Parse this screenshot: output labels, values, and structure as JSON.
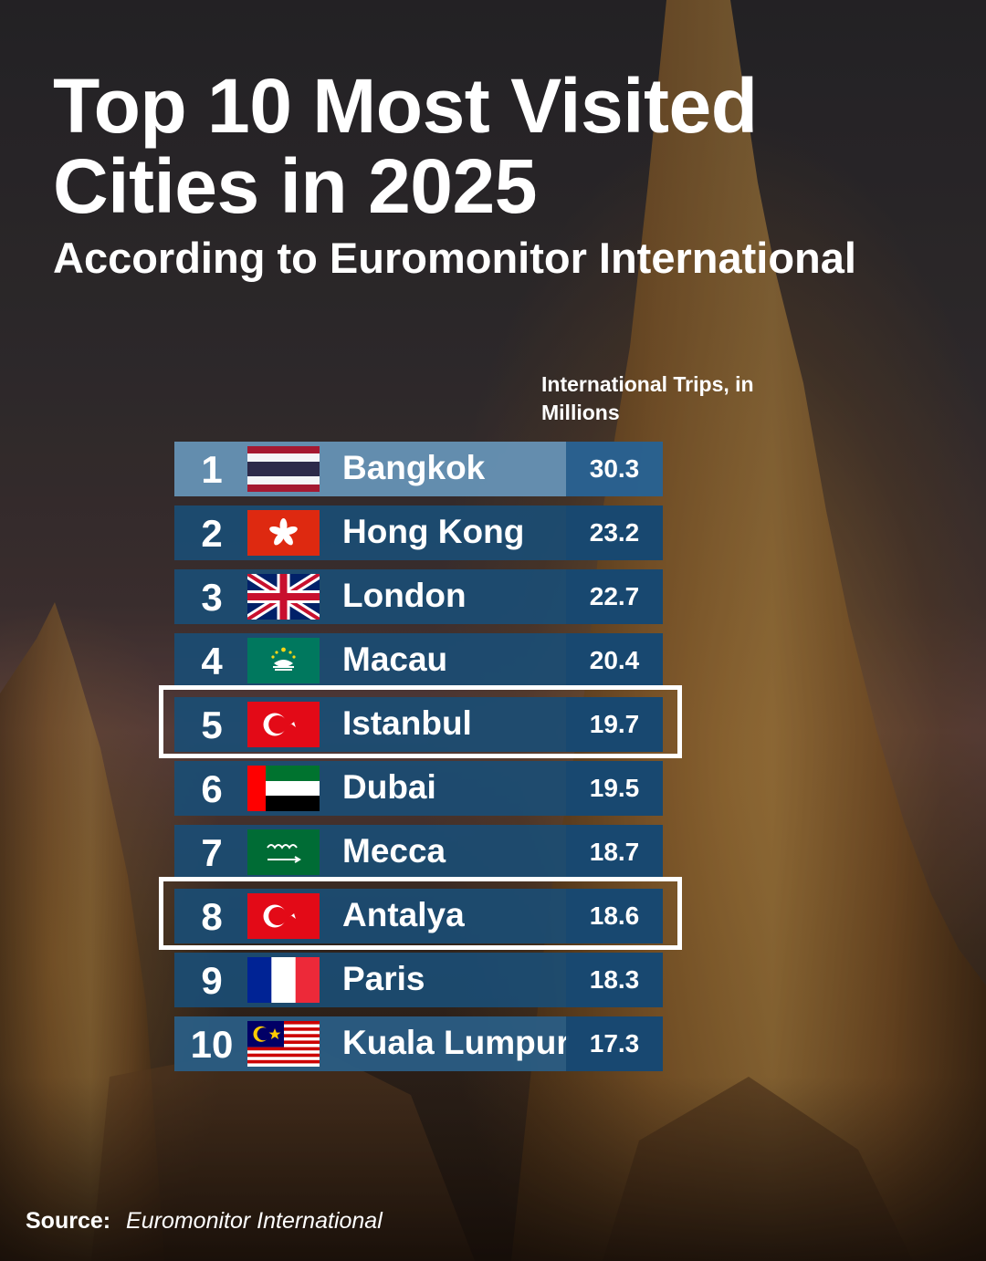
{
  "title": "Top 10 Most Visited Cities in 2025",
  "subtitle": "According to Euromonitor International",
  "column_header": "International Trips, in Millions",
  "source": {
    "label": "Source:",
    "name": "Euromonitor International"
  },
  "highlighted_cities": [
    "Istanbul",
    "Antalya"
  ],
  "colors": {
    "row": "#1b4c73",
    "first_row": "#6692b5",
    "highlight_border": "#ffffff"
  },
  "chart_data": {
    "type": "table",
    "title": "Top 10 Most Visited Cities in 2025",
    "subtitle": "According to Euromonitor International",
    "value_label": "International Trips, in Millions",
    "rows": [
      {
        "rank": "1",
        "city": "Bangkok",
        "value": "30.3",
        "flag": "thailand-flag"
      },
      {
        "rank": "2",
        "city": "Hong Kong",
        "value": "23.2",
        "flag": "hong-kong-flag"
      },
      {
        "rank": "3",
        "city": "London",
        "value": "22.7",
        "flag": "united-kingdom-flag"
      },
      {
        "rank": "4",
        "city": "Macau",
        "value": "20.4",
        "flag": "macau-flag"
      },
      {
        "rank": "5",
        "city": "Istanbul",
        "value": "19.7",
        "flag": "turkey-flag"
      },
      {
        "rank": "6",
        "city": "Dubai",
        "value": "19.5",
        "flag": "uae-flag"
      },
      {
        "rank": "7",
        "city": "Mecca",
        "value": "18.7",
        "flag": "saudi-arabia-flag"
      },
      {
        "rank": "8",
        "city": "Antalya",
        "value": "18.6",
        "flag": "turkey-flag"
      },
      {
        "rank": "9",
        "city": "Paris",
        "value": "18.3",
        "flag": "france-flag"
      },
      {
        "rank": "10",
        "city": "Kuala Lumpur",
        "value": "17.3",
        "flag": "malaysia-flag"
      }
    ]
  }
}
